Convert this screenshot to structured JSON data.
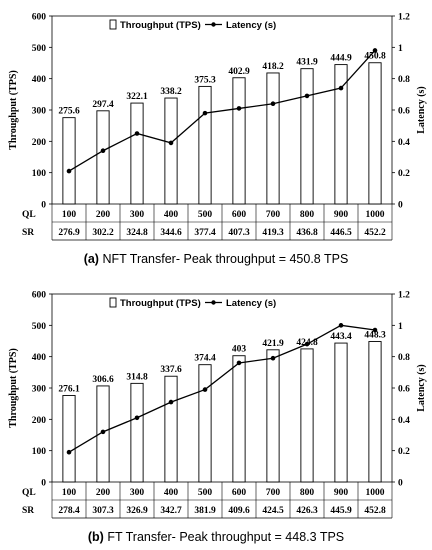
{
  "chart_data": [
    {
      "type": "bar",
      "panel_label": "(a)",
      "caption": "NFT Transfer- Peak throughput = 450.8 TPS",
      "categories": [
        "100",
        "200",
        "300",
        "400",
        "500",
        "600",
        "700",
        "800",
        "900",
        "1000"
      ],
      "series": [
        {
          "name": "Throughput (TPS)",
          "type": "bar",
          "axis": "left",
          "values": [
            275.6,
            297.4,
            322.1,
            338.2,
            375.3,
            402.9,
            418.2,
            431.9,
            444.9,
            450.8
          ]
        },
        {
          "name": "Latency (s)",
          "type": "line",
          "axis": "right",
          "values": [
            0.21,
            0.34,
            0.45,
            0.39,
            0.58,
            0.61,
            0.64,
            0.69,
            0.74,
            0.98
          ]
        }
      ],
      "ylabel": "Throughput (TPS)",
      "y2label": "Latency (s)",
      "ylim": [
        0,
        600
      ],
      "y2lim": [
        0,
        1.2
      ],
      "yticks": [
        "0",
        "100",
        "200",
        "300",
        "400",
        "500",
        "600"
      ],
      "y2ticks": [
        "0",
        "0.2",
        "0.4",
        "0.6",
        "0.8",
        "1",
        "1.2"
      ],
      "table": {
        "rows": [
          {
            "label": "QL",
            "values": [
              "100",
              "200",
              "300",
              "400",
              "500",
              "600",
              "700",
              "800",
              "900",
              "1000"
            ]
          },
          {
            "label": "SR",
            "values": [
              "276.9",
              "302.2",
              "324.8",
              "344.6",
              "377.4",
              "407.3",
              "419.3",
              "436.8",
              "446.5",
              "452.2"
            ]
          }
        ]
      },
      "data_labels": [
        "275.6",
        "297.4",
        "322.1",
        "338.2",
        "375.3",
        "402.9",
        "418.2",
        "431.9",
        "444.9",
        "450.8"
      ],
      "legend_position": "top"
    },
    {
      "type": "bar",
      "panel_label": "(b)",
      "caption": "FT Transfer- Peak throughput = 448.3 TPS",
      "categories": [
        "100",
        "200",
        "300",
        "400",
        "500",
        "600",
        "700",
        "800",
        "900",
        "1000"
      ],
      "series": [
        {
          "name": "Throughput (TPS)",
          "type": "bar",
          "axis": "left",
          "values": [
            276.1,
            306.6,
            314.8,
            337.6,
            374.4,
            403,
            421.9,
            424.8,
            443.4,
            448.3
          ]
        },
        {
          "name": "Latency (s)",
          "type": "line",
          "axis": "right",
          "values": [
            0.19,
            0.32,
            0.41,
            0.51,
            0.59,
            0.76,
            0.79,
            0.88,
            1.0,
            0.97
          ]
        }
      ],
      "ylabel": "Throughput (TPS)",
      "y2label": "Latency (s)",
      "ylim": [
        0,
        600
      ],
      "y2lim": [
        0,
        1.2
      ],
      "yticks": [
        "0",
        "100",
        "200",
        "300",
        "400",
        "500",
        "600"
      ],
      "y2ticks": [
        "0",
        "0.2",
        "0.4",
        "0.6",
        "0.8",
        "1",
        "1.2"
      ],
      "table": {
        "rows": [
          {
            "label": "QL",
            "values": [
              "100",
              "200",
              "300",
              "400",
              "500",
              "600",
              "700",
              "800",
              "900",
              "1000"
            ]
          },
          {
            "label": "SR",
            "values": [
              "278.4",
              "307.3",
              "326.9",
              "342.7",
              "381.9",
              "409.6",
              "424.5",
              "426.3",
              "445.9",
              "452.8"
            ]
          }
        ]
      },
      "data_labels": [
        "276.1",
        "306.6",
        "314.8",
        "337.6",
        "374.4",
        "403",
        "421.9",
        "424.8",
        "443.4",
        "448.3"
      ],
      "legend_position": "top"
    }
  ]
}
